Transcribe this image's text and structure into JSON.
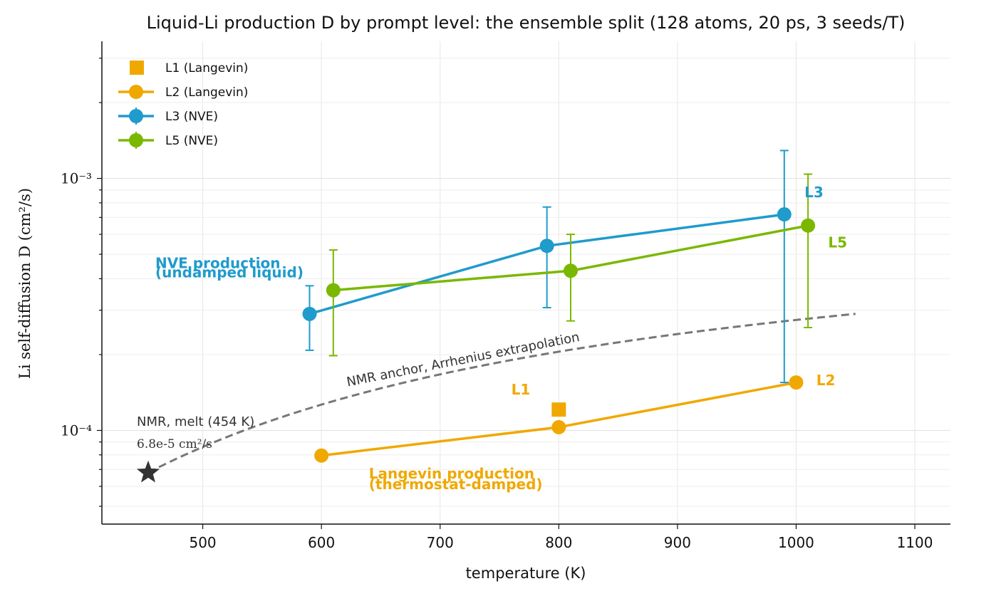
{
  "chart_data": {
    "type": "line",
    "title": "Liquid-Li production D by prompt level: the ensemble split (128 atoms, 20 ps, 3 seeds/T)",
    "xlabel": "temperature (K)",
    "ylabel": "Li self-diffusion D (cm²/s)",
    "xlim": [
      415,
      1130
    ],
    "ylim": [
      4.25e-05,
      0.0035
    ],
    "yscale": "log",
    "xticks": [
      500,
      600,
      700,
      800,
      900,
      1000,
      1100
    ],
    "yticks": [
      {
        "value": 0.001,
        "label": "10⁻³"
      },
      {
        "value": 0.0001,
        "label": "10⁻⁴"
      }
    ],
    "grid": true,
    "legend_position": "top-left",
    "series": [
      {
        "name": "L1 (Langevin)",
        "color": "#f0a800",
        "marker": "square",
        "line": false,
        "points": [
          {
            "x": 800,
            "y": 0.000121
          }
        ]
      },
      {
        "name": "L2 (Langevin)",
        "color": "#f0a800",
        "marker": "circle",
        "line": true,
        "points": [
          {
            "x": 600,
            "y": 7.95e-05
          },
          {
            "x": 800,
            "y": 0.000103
          },
          {
            "x": 1000,
            "y": 0.000155
          }
        ]
      },
      {
        "name": "L3 (NVE)",
        "color": "#1f9bcc",
        "marker": "circle",
        "line": true,
        "errorbars": true,
        "points": [
          {
            "x": 590,
            "y": 0.00029,
            "ylow": 0.000208,
            "yhigh": 0.000375
          },
          {
            "x": 790,
            "y": 0.00054,
            "ylow": 0.000307,
            "yhigh": 0.00077
          },
          {
            "x": 990,
            "y": 0.00072,
            "ylow": 0.000155,
            "yhigh": 0.00129
          }
        ]
      },
      {
        "name": "L5 (NVE)",
        "color": "#7ab800",
        "marker": "circle",
        "line": true,
        "errorbars": true,
        "points": [
          {
            "x": 610,
            "y": 0.00036,
            "ylow": 0.000198,
            "yhigh": 0.00052
          },
          {
            "x": 810,
            "y": 0.00043,
            "ylow": 0.000272,
            "yhigh": 0.0006
          },
          {
            "x": 1010,
            "y": 0.00065,
            "ylow": 0.000256,
            "yhigh": 0.00104
          }
        ]
      }
    ],
    "reference": {
      "label": "NMR anchor, Arrhenius extrapolation",
      "color": "#777777",
      "melt_point": {
        "x": 454,
        "y": 6.8e-05
      },
      "melt_label": "NMR, melt (454 K)",
      "melt_value_label": "6.8e-5 cm²/s",
      "x_end": 1050,
      "y_end": 0.00029
    },
    "annotations": [
      {
        "text": "NVE production",
        "x": 460,
        "y": 0.00044,
        "color": "#1f9bcc"
      },
      {
        "text": "(undamped liquid)",
        "x": 460,
        "y": 0.000405,
        "color": "#1f9bcc"
      },
      {
        "text": "Langevin production",
        "x": 640,
        "y": 6.45e-05,
        "color": "#f0a800"
      },
      {
        "text": "(thermostat-damped)",
        "x": 640,
        "y": 5.85e-05,
        "color": "#f0a800"
      },
      {
        "text": "L1",
        "x": 760,
        "y": 0.000139,
        "color": "#f0a800"
      },
      {
        "text": "L2",
        "x": 1017,
        "y": 0.000151,
        "color": "#f0a800"
      },
      {
        "text": "L3",
        "x": 1007,
        "y": 0.000843,
        "color": "#1f9bcc"
      },
      {
        "text": "L5",
        "x": 1027,
        "y": 0.000532,
        "color": "#7ab800"
      }
    ]
  }
}
